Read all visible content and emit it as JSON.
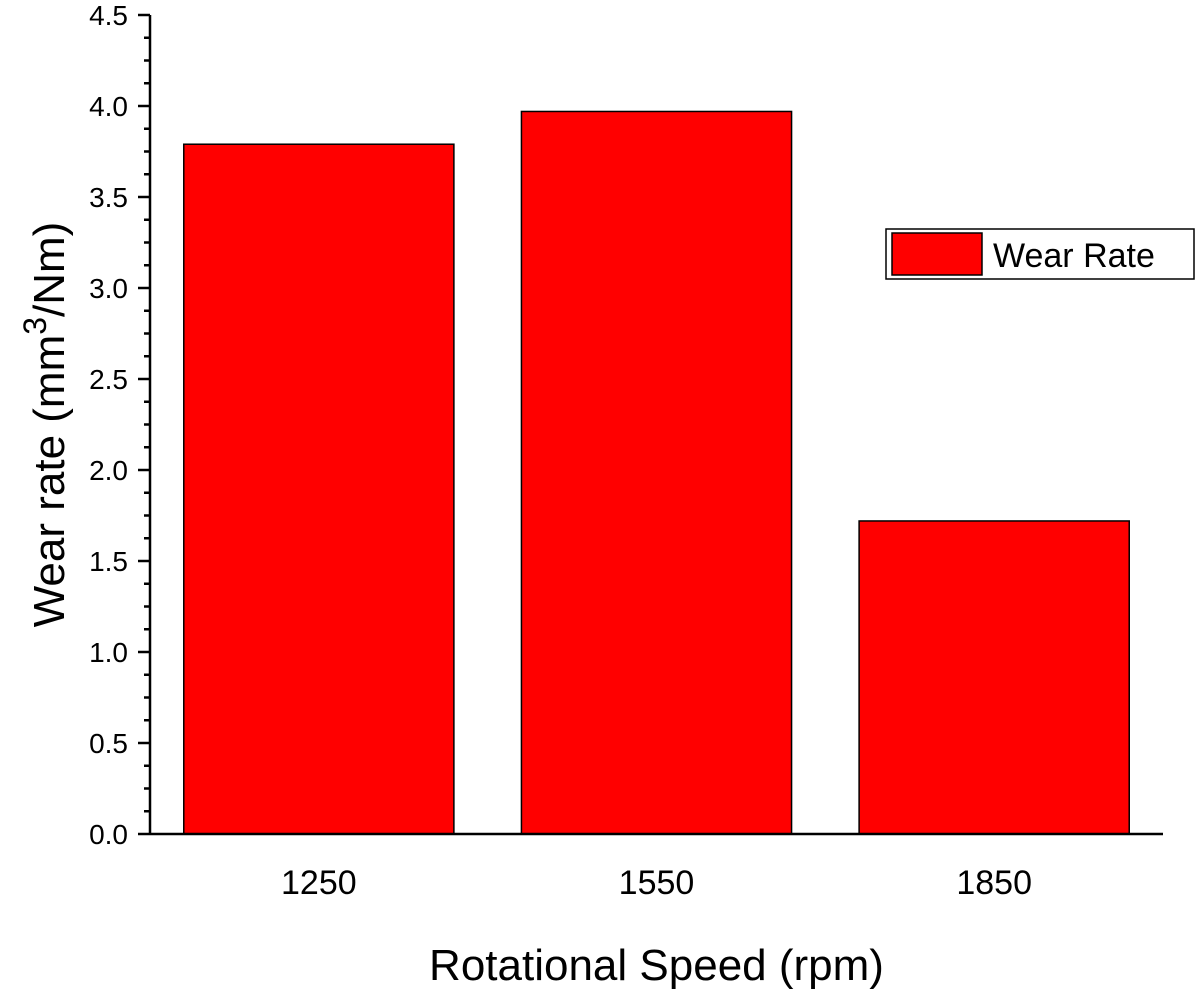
{
  "chart_data": {
    "type": "bar",
    "categories": [
      "1250",
      "1550",
      "1850"
    ],
    "series": [
      {
        "name": "Wear Rate",
        "values": [
          3.79,
          3.97,
          1.72
        ],
        "color": "#ff0000"
      }
    ],
    "xlabel": "Rotational Speed (rpm)",
    "ylabel": {
      "prefix": "Wear rate (mm",
      "superscript": "3",
      "suffix": "/Nm)"
    },
    "ylim": [
      0,
      4.5
    ],
    "yticks": [
      "0.0",
      "0.5",
      "1.0",
      "1.5",
      "2.0",
      "2.5",
      "3.0",
      "3.5",
      "4.0",
      "4.5"
    ],
    "grid": false,
    "legend_position": "right"
  }
}
